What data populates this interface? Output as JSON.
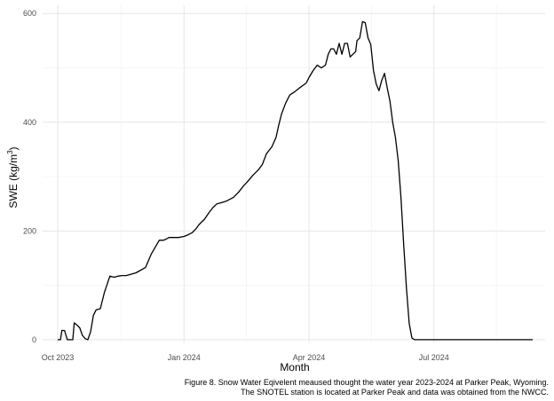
{
  "chart_data": {
    "type": "line",
    "xlabel": "Month",
    "ylabel": "SWE (kg/m",
    "ylabel_sup": "3",
    "ylabel_close": ")",
    "xlim": [
      "2023-09-20",
      "2024-09-20"
    ],
    "ylim": [
      -5,
      615
    ],
    "x_ticks": [
      {
        "date": "2023-10-01",
        "label": "Oct 2023"
      },
      {
        "date": "2024-01-01",
        "label": "Jan 2024"
      },
      {
        "date": "2024-04-01",
        "label": "Apr 2024"
      },
      {
        "date": "2024-07-01",
        "label": "Jul 2024"
      }
    ],
    "y_ticks": [
      0,
      200,
      400,
      600
    ],
    "grid": true,
    "line_color": "#000000",
    "series": [
      {
        "x": [
          "2023-10-01",
          "2023-10-03",
          "2023-10-04",
          "2023-10-06",
          "2023-10-08",
          "2023-10-10",
          "2023-10-12",
          "2023-10-13",
          "2023-10-15",
          "2023-10-17",
          "2023-10-19",
          "2023-10-21",
          "2023-10-23",
          "2023-10-25",
          "2023-10-27",
          "2023-10-29",
          "2023-11-01",
          "2023-11-04",
          "2023-11-08",
          "2023-11-11",
          "2023-11-14",
          "2023-11-17",
          "2023-11-20",
          "2023-11-27",
          "2023-12-04",
          "2023-12-08",
          "2023-12-11",
          "2023-12-14",
          "2023-12-17",
          "2023-12-19",
          "2023-12-21",
          "2023-12-28",
          "2024-01-01",
          "2024-01-04",
          "2024-01-07",
          "2024-01-10",
          "2024-01-12",
          "2024-01-16",
          "2024-01-19",
          "2024-01-22",
          "2024-01-25",
          "2024-01-28",
          "2024-02-01",
          "2024-02-06",
          "2024-02-10",
          "2024-02-13",
          "2024-02-16",
          "2024-02-20",
          "2024-02-24",
          "2024-02-27",
          "2024-03-01",
          "2024-03-05",
          "2024-03-08",
          "2024-03-10",
          "2024-03-12",
          "2024-03-15",
          "2024-03-18",
          "2024-03-21",
          "2024-03-25",
          "2024-03-30",
          "2024-04-01",
          "2024-04-04",
          "2024-04-07",
          "2024-04-10",
          "2024-04-13",
          "2024-04-15",
          "2024-04-17",
          "2024-04-19",
          "2024-04-21",
          "2024-04-23",
          "2024-04-25",
          "2024-04-27",
          "2024-04-29",
          "2024-05-01",
          "2024-05-03",
          "2024-05-05",
          "2024-05-06",
          "2024-05-08",
          "2024-05-10",
          "2024-05-12",
          "2024-05-14",
          "2024-05-16",
          "2024-05-18",
          "2024-05-20",
          "2024-05-22",
          "2024-05-24",
          "2024-05-26",
          "2024-05-28",
          "2024-05-30",
          "2024-06-01",
          "2024-06-03",
          "2024-06-05",
          "2024-06-07",
          "2024-06-09",
          "2024-06-11",
          "2024-06-13",
          "2024-06-15",
          "2024-06-17",
          "2024-06-19",
          "2024-06-21",
          "2024-06-23",
          "2024-06-24",
          "2024-06-26",
          "2024-07-15",
          "2024-08-15",
          "2024-09-11"
        ],
        "y": [
          0,
          0,
          17,
          17,
          0,
          0,
          0,
          31,
          27,
          22,
          8,
          2,
          0,
          15,
          45,
          55,
          57,
          87,
          117,
          115,
          117,
          118,
          118,
          123,
          133,
          157,
          170,
          183,
          183,
          185,
          188,
          188,
          190,
          193,
          197,
          205,
          212,
          222,
          233,
          243,
          250,
          252,
          255,
          262,
          272,
          282,
          290,
          302,
          312,
          322,
          342,
          355,
          372,
          395,
          415,
          435,
          450,
          455,
          463,
          472,
          482,
          495,
          505,
          500,
          505,
          525,
          535,
          535,
          525,
          545,
          525,
          545,
          545,
          520,
          525,
          530,
          550,
          555,
          585,
          583,
          555,
          543,
          495,
          470,
          458,
          477,
          490,
          463,
          438,
          400,
          372,
          330,
          262,
          175,
          95,
          30,
          3,
          0,
          0,
          0,
          0,
          0,
          0,
          0,
          0,
          0
        ]
      }
    ],
    "caption_line1": "Figure 8. Snow Water Eqivelent meaused thought the water year 2023-2024 at Parker Peak, Wyoming.",
    "caption_line2": "The SNOTEL station is located at Parker Peak and data was obtained from the NWCC."
  }
}
